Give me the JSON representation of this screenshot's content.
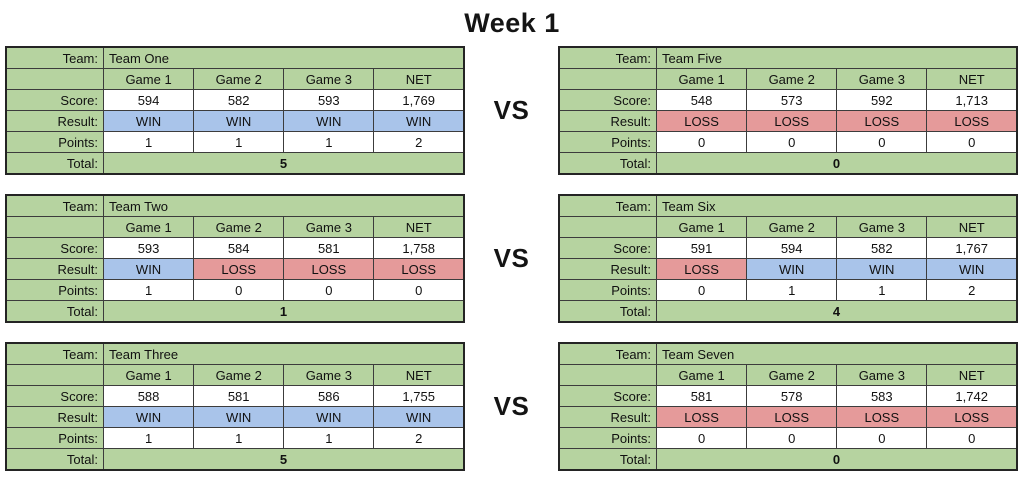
{
  "page": {
    "title": "Week 1",
    "vs_label": "VS"
  },
  "labels": {
    "team": "Team:",
    "score": "Score:",
    "result": "Result:",
    "points": "Points:",
    "total": "Total:"
  },
  "columns": [
    "Game 1",
    "Game 2",
    "Game 3",
    "NET"
  ],
  "colors": {
    "cell_green": "#b6d3a0",
    "win_blue": "#a9c4ea",
    "loss_red": "#e59a9a",
    "border": "#3c3c3c",
    "text": "#111111"
  },
  "matchups": [
    {
      "left": {
        "name": "Team One",
        "scores": [
          "594",
          "582",
          "593",
          "1,769"
        ],
        "results": [
          "WIN",
          "WIN",
          "WIN",
          "WIN"
        ],
        "points": [
          "1",
          "1",
          "1",
          "2"
        ],
        "total": "5"
      },
      "right": {
        "name": "Team Five",
        "scores": [
          "548",
          "573",
          "592",
          "1,713"
        ],
        "results": [
          "LOSS",
          "LOSS",
          "LOSS",
          "LOSS"
        ],
        "points": [
          "0",
          "0",
          "0",
          "0"
        ],
        "total": "0"
      }
    },
    {
      "left": {
        "name": "Team Two",
        "scores": [
          "593",
          "584",
          "581",
          "1,758"
        ],
        "results": [
          "WIN",
          "LOSS",
          "LOSS",
          "LOSS"
        ],
        "points": [
          "1",
          "0",
          "0",
          "0"
        ],
        "total": "1"
      },
      "right": {
        "name": "Team Six",
        "scores": [
          "591",
          "594",
          "582",
          "1,767"
        ],
        "results": [
          "LOSS",
          "WIN",
          "WIN",
          "WIN"
        ],
        "points": [
          "0",
          "1",
          "1",
          "2"
        ],
        "total": "4"
      }
    },
    {
      "left": {
        "name": "Team Three",
        "scores": [
          "588",
          "581",
          "586",
          "1,755"
        ],
        "results": [
          "WIN",
          "WIN",
          "WIN",
          "WIN"
        ],
        "points": [
          "1",
          "1",
          "1",
          "2"
        ],
        "total": "5"
      },
      "right": {
        "name": "Team Seven",
        "scores": [
          "581",
          "578",
          "583",
          "1,742"
        ],
        "results": [
          "LOSS",
          "LOSS",
          "LOSS",
          "LOSS"
        ],
        "points": [
          "0",
          "0",
          "0",
          "0"
        ],
        "total": "0"
      }
    }
  ]
}
